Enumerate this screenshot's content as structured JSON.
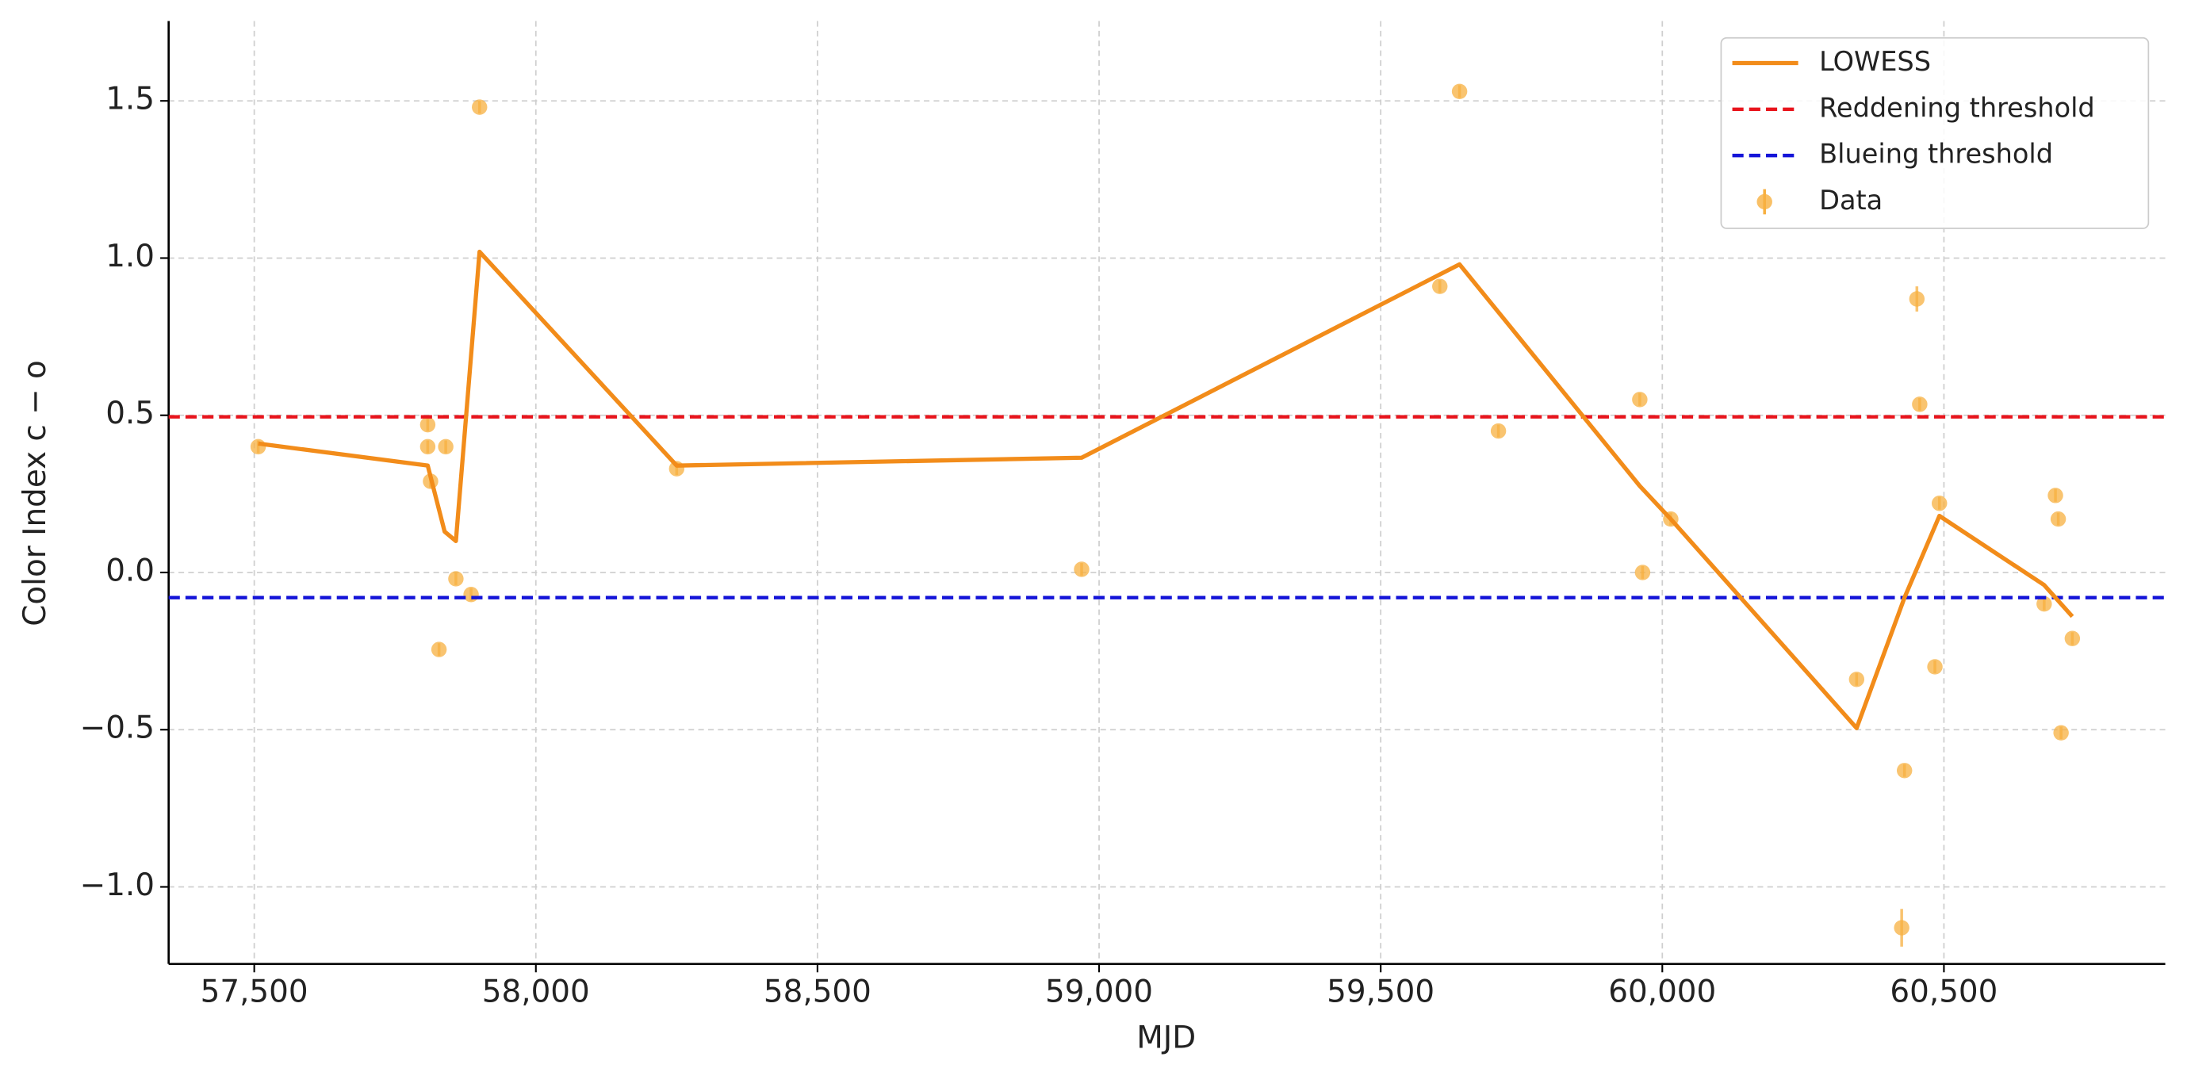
{
  "chart_data": {
    "type": "scatter",
    "xlabel": "MJD",
    "ylabel": "Color Index c − o",
    "xlim": [
      57348,
      60893
    ],
    "ylim": [
      -1.245,
      1.754
    ],
    "xticks": [
      {
        "value": 57500,
        "label": "57,500"
      },
      {
        "value": 58000,
        "label": "58,000"
      },
      {
        "value": 58500,
        "label": "58,500"
      },
      {
        "value": 59000,
        "label": "59,000"
      },
      {
        "value": 59500,
        "label": "59,500"
      },
      {
        "value": 60000,
        "label": "60,000"
      },
      {
        "value": 60500,
        "label": "60,500"
      }
    ],
    "yticks": [
      {
        "value": -1.0,
        "label": "−1.0"
      },
      {
        "value": -0.5,
        "label": "−0.5"
      },
      {
        "value": 0.0,
        "label": "0.0"
      },
      0.5,
      {
        "value": 1.0,
        "label": "1.0"
      },
      1.5
    ],
    "grid": true,
    "legend": "upper right",
    "series": [
      {
        "name": "LOWESS",
        "color": "#f28c1a",
        "kind": "line",
        "x": [
          57507,
          57808,
          57838,
          57858,
          57900,
          58250,
          58969,
          59640,
          59960,
          60015,
          60345,
          60430,
          60492,
          60678,
          60728
        ],
        "values": [
          0.41,
          0.34,
          0.13,
          0.1,
          1.02,
          0.34,
          0.365,
          0.98,
          0.275,
          0.17,
          -0.495,
          -0.08,
          0.18,
          -0.04,
          -0.14
        ]
      },
      {
        "name": "Reddening threshold",
        "color": "#e8141c",
        "kind": "hline",
        "value": 0.495
      },
      {
        "name": "Blueing threshold",
        "color": "#1414d8",
        "kind": "hline",
        "value": -0.08
      },
      {
        "name": "Data",
        "color": "#f7b040",
        "kind": "errorbar",
        "x": [
          57507,
          57808,
          57808,
          57813,
          57840,
          57828,
          57858,
          57885,
          57900,
          58250,
          58969,
          59605,
          59640,
          59709,
          59960,
          59965,
          60015,
          60345,
          60430,
          60425,
          60452,
          60457,
          60484,
          60492,
          60678,
          60698,
          60703,
          60708,
          60728
        ],
        "values": [
          0.4,
          0.47,
          0.4,
          0.29,
          0.4,
          -0.245,
          -0.02,
          -0.07,
          1.48,
          0.33,
          0.01,
          0.91,
          1.53,
          0.45,
          0.55,
          0.0,
          0.17,
          -0.34,
          -0.63,
          -1.13,
          0.87,
          0.535,
          -0.3,
          0.22,
          -0.1,
          0.245,
          0.17,
          -0.51,
          -0.21
        ],
        "errors": [
          0.02,
          0.02,
          0.02,
          0.02,
          0.02,
          0.02,
          0.02,
          0.02,
          0.02,
          0.02,
          0.02,
          0.02,
          0.02,
          0.02,
          0.02,
          0.02,
          0.02,
          0.02,
          0.02,
          0.06,
          0.04,
          0.02,
          0.02,
          0.02,
          0.02,
          0.02,
          0.02,
          0.02,
          0.02
        ]
      }
    ]
  }
}
